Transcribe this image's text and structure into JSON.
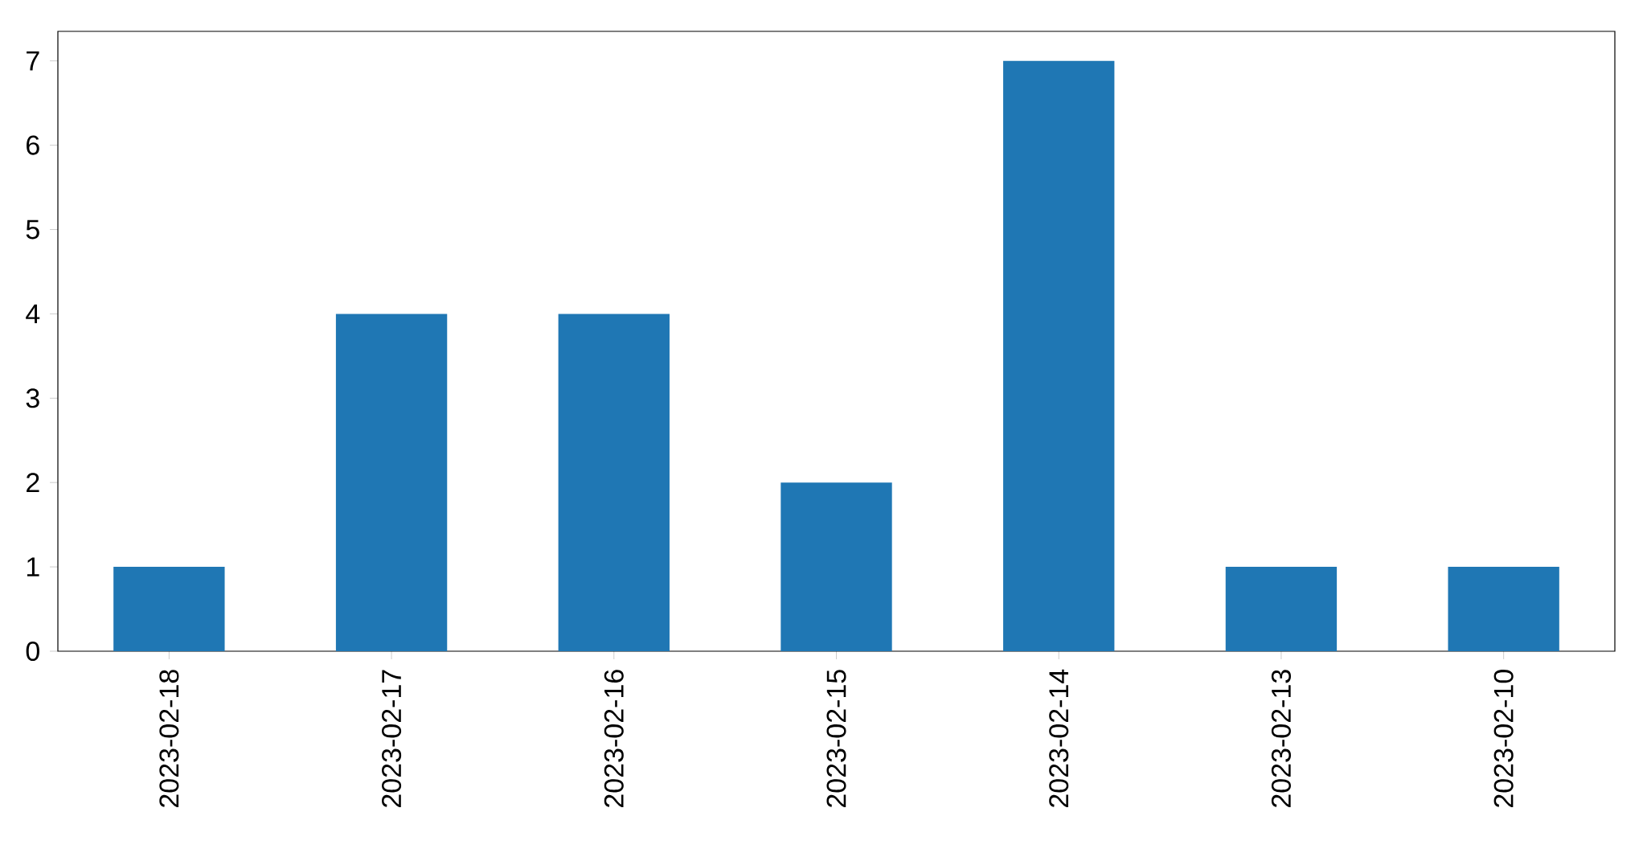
{
  "chart_data": {
    "type": "bar",
    "categories": [
      "2023-02-18",
      "2023-02-17",
      "2023-02-16",
      "2023-02-15",
      "2023-02-14",
      "2023-02-13",
      "2023-02-10"
    ],
    "values": [
      1,
      4,
      4,
      2,
      7,
      1,
      1
    ],
    "color": "#1f77b4",
    "ylim": [
      0,
      7.35
    ],
    "yticks": [
      0,
      1,
      2,
      3,
      4,
      5,
      6,
      7
    ]
  }
}
